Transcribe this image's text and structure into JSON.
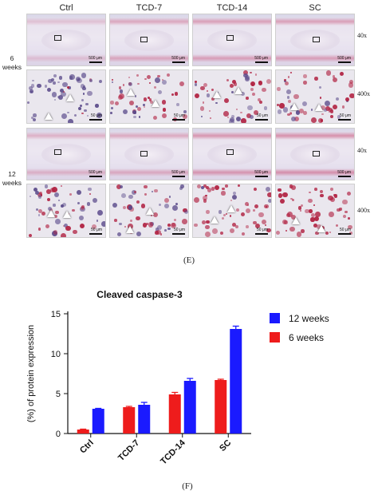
{
  "micrograph": {
    "columns": [
      "Ctrl",
      "TCD-7",
      "TCD-14",
      "SC"
    ],
    "rows": [
      {
        "label_line1": "6",
        "label_line2": "weeks"
      },
      {
        "label_line1": "12",
        "label_line2": "weeks"
      }
    ],
    "magnifications": [
      "40x",
      "400x",
      "40x",
      "400x"
    ],
    "scale_low": "500 μm",
    "scale_high": "50 μm",
    "stain_color": "#b02040",
    "counterstain_color": "#5a4a8a",
    "panel_letter": "(E)"
  },
  "figure_letter_bottom": "(F)",
  "chart_data": {
    "type": "bar",
    "title": "Cleaved caspase-3",
    "ylabel": "(%) of protein expression",
    "xlabel": "",
    "categories": [
      "Ctrl",
      "TCD-7",
      "TCD-14",
      "SC"
    ],
    "ylim": [
      0,
      15
    ],
    "yticks": [
      0,
      5,
      10,
      15
    ],
    "series": [
      {
        "name": "6 weeks",
        "color": "#ee1c1c",
        "values": [
          0.5,
          3.3,
          4.9,
          6.7
        ],
        "errors": [
          0.05,
          0.1,
          0.25,
          0.1
        ]
      },
      {
        "name": "12 weeks",
        "color": "#1a1aff",
        "values": [
          3.1,
          3.6,
          6.6,
          13.1
        ],
        "errors": [
          0.05,
          0.3,
          0.3,
          0.35
        ]
      }
    ],
    "legend_order": [
      "12 weeks",
      "6 weeks"
    ],
    "legend_position": "right",
    "grid": false
  }
}
